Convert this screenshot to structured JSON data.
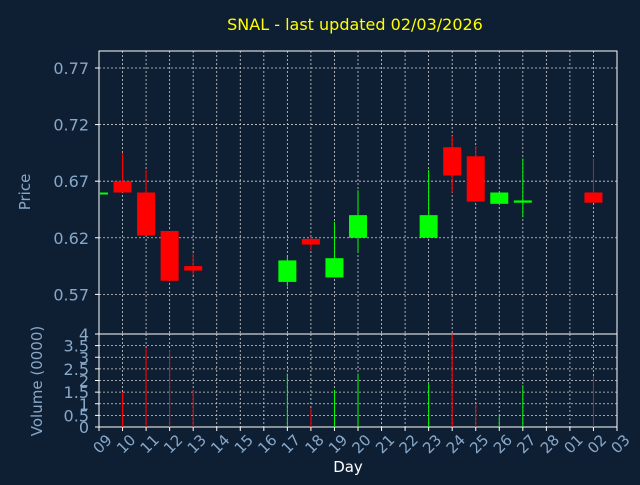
{
  "colors": {
    "background": "#0f1f33",
    "title": "#ffff00",
    "text": "#88a8c8",
    "axis": "#ffffff",
    "grid": "#cfcfcf",
    "up": "#00ff00",
    "down": "#ff0000"
  },
  "chart_data": {
    "type": "candlestick",
    "title": "SNAL - last updated 02/03/2026",
    "xlabel": "Day",
    "grid": true,
    "x_ticks": [
      "09",
      "10",
      "11",
      "12",
      "13",
      "14",
      "15",
      "16",
      "17",
      "18",
      "19",
      "20",
      "21",
      "22",
      "23",
      "24",
      "25",
      "26",
      "27",
      "28",
      "01",
      "02",
      "03"
    ],
    "price_panel": {
      "ylabel": "Price",
      "ylim": [
        0.535,
        0.785
      ],
      "y_ticks": [
        "0.77",
        "0.72",
        "0.67",
        "0.62",
        "0.57"
      ],
      "candles": [
        {
          "day": "09",
          "open": 0.66,
          "close": 0.66,
          "high": 0.66,
          "low": 0.66
        },
        {
          "day": "10",
          "open": 0.67,
          "close": 0.66,
          "high": 0.695,
          "low": 0.66
        },
        {
          "day": "11",
          "open": 0.66,
          "close": 0.622,
          "high": 0.68,
          "low": 0.622
        },
        {
          "day": "12",
          "open": 0.626,
          "close": 0.582,
          "high": 0.626,
          "low": 0.582
        },
        {
          "day": "13",
          "open": 0.595,
          "close": 0.591,
          "high": 0.606,
          "low": 0.587
        },
        {
          "day": "17",
          "open": 0.581,
          "close": 0.6,
          "high": 0.603,
          "low": 0.577
        },
        {
          "day": "18",
          "open": 0.619,
          "close": 0.614,
          "high": 0.621,
          "low": 0.609
        },
        {
          "day": "19",
          "open": 0.585,
          "close": 0.602,
          "high": 0.634,
          "low": 0.585
        },
        {
          "day": "20",
          "open": 0.62,
          "close": 0.64,
          "high": 0.662,
          "low": 0.607
        },
        {
          "day": "23",
          "open": 0.62,
          "close": 0.64,
          "high": 0.68,
          "low": 0.62
        },
        {
          "day": "24",
          "open": 0.7,
          "close": 0.675,
          "high": 0.71,
          "low": 0.66
        },
        {
          "day": "25",
          "open": 0.692,
          "close": 0.652,
          "high": 0.701,
          "low": 0.652
        },
        {
          "day": "26",
          "open": 0.65,
          "close": 0.66,
          "high": 0.66,
          "low": 0.65
        },
        {
          "day": "27",
          "open": 0.651,
          "close": 0.653,
          "high": 0.69,
          "low": 0.638
        },
        {
          "day": "02",
          "open": 0.66,
          "close": 0.651,
          "high": 0.69,
          "low": 0.651
        }
      ]
    },
    "volume_panel": {
      "ylabel": "Volume (0000)",
      "ylim": [
        0,
        4
      ],
      "y_ticks": [
        "4",
        "3.5",
        "3",
        "2.5",
        "2",
        "1.5",
        "1",
        "0.5",
        "0"
      ],
      "bars": [
        {
          "day": "10",
          "value": 1.5,
          "color": "down"
        },
        {
          "day": "11",
          "value": 3.4,
          "color": "down"
        },
        {
          "day": "12",
          "value": 3.3,
          "color": "down"
        },
        {
          "day": "13",
          "value": 1.6,
          "color": "down"
        },
        {
          "day": "17",
          "value": 2.3,
          "color": "up"
        },
        {
          "day": "18",
          "value": 0.8,
          "color": "down"
        },
        {
          "day": "19",
          "value": 1.6,
          "color": "up"
        },
        {
          "day": "20",
          "value": 2.3,
          "color": "up"
        },
        {
          "day": "23",
          "value": 1.9,
          "color": "up"
        },
        {
          "day": "24",
          "value": 4.0,
          "color": "down"
        },
        {
          "day": "25",
          "value": 1.0,
          "color": "down"
        },
        {
          "day": "26",
          "value": 0.5,
          "color": "up"
        },
        {
          "day": "27",
          "value": 1.8,
          "color": "up"
        },
        {
          "day": "02",
          "value": 2.2,
          "color": "down"
        }
      ]
    }
  }
}
